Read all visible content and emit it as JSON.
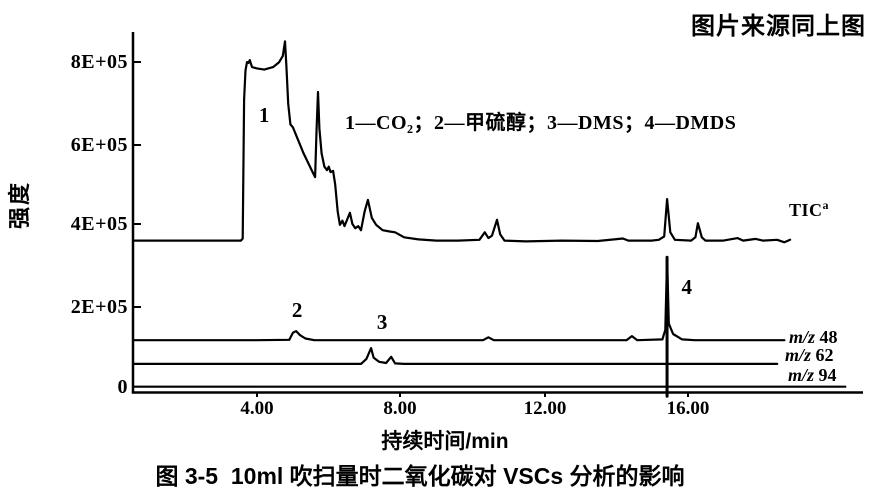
{
  "source_note": "图片来源同上图",
  "caption": "图 3-5  10ml 吹扫量时二氧化碳对 VSCs 分析的影响",
  "chart_data": {
    "type": "line",
    "title": "图 3-5 10ml 吹扫量时二氧化碳对 VSCs 分析的影响",
    "xlabel": "持续时间/min",
    "ylabel": "强度",
    "legend_text": "1—CO₂；2—甲硫醇；3—DMS；4—DMDS",
    "grid": false,
    "xlim": [
      0.55,
      20.9
    ],
    "ylim": [
      0,
      900000
    ],
    "x_tick_values": [
      4,
      8,
      12,
      16
    ],
    "x_tick_labels": [
      "4.00",
      "8.00",
      "12.00",
      "16.00"
    ],
    "y_tick_values": [
      800000,
      600000,
      400000,
      200000,
      0
    ],
    "y_tick_labels": [
      "8E+05",
      "6E+05",
      "4E+05",
      "2E+05",
      "0"
    ],
    "series": [
      {
        "name": "TIC",
        "label": "TIC",
        "label_sup": "a",
        "points": [
          [
            0.55,
            360000
          ],
          [
            2.0,
            360000
          ],
          [
            3.0,
            360000
          ],
          [
            3.55,
            360000
          ],
          [
            3.6,
            365000
          ],
          [
            3.64,
            700000
          ],
          [
            3.68,
            770000
          ],
          [
            3.72,
            790000
          ],
          [
            3.76,
            788000
          ],
          [
            3.8,
            795000
          ],
          [
            3.86,
            778000
          ],
          [
            4.0,
            775000
          ],
          [
            4.2,
            772000
          ],
          [
            4.45,
            778000
          ],
          [
            4.62,
            790000
          ],
          [
            4.72,
            805000
          ],
          [
            4.78,
            840000
          ],
          [
            4.82,
            780000
          ],
          [
            4.87,
            690000
          ],
          [
            4.93,
            640000
          ],
          [
            5.0,
            633000
          ],
          [
            5.3,
            570000
          ],
          [
            5.55,
            525000
          ],
          [
            5.62,
            513000
          ],
          [
            5.66,
            630000
          ],
          [
            5.7,
            718000
          ],
          [
            5.74,
            630000
          ],
          [
            5.8,
            570000
          ],
          [
            5.88,
            538000
          ],
          [
            5.95,
            530000
          ],
          [
            6.0,
            538000
          ],
          [
            6.05,
            525000
          ],
          [
            6.12,
            528000
          ],
          [
            6.18,
            495000
          ],
          [
            6.25,
            430000
          ],
          [
            6.31,
            398000
          ],
          [
            6.38,
            408000
          ],
          [
            6.44,
            395000
          ],
          [
            6.52,
            412000
          ],
          [
            6.59,
            427000
          ],
          [
            6.66,
            400000
          ],
          [
            6.74,
            390000
          ],
          [
            6.82,
            395000
          ],
          [
            6.9,
            385000
          ],
          [
            7.0,
            430000
          ],
          [
            7.09,
            458000
          ],
          [
            7.2,
            415000
          ],
          [
            7.32,
            398000
          ],
          [
            7.5,
            385000
          ],
          [
            7.7,
            382000
          ],
          [
            7.85,
            380000
          ],
          [
            8.1,
            368000
          ],
          [
            8.5,
            363000
          ],
          [
            9.0,
            360000
          ],
          [
            9.6,
            360000
          ],
          [
            10.2,
            362000
          ],
          [
            10.35,
            380000
          ],
          [
            10.45,
            366000
          ],
          [
            10.55,
            372000
          ],
          [
            10.69,
            410000
          ],
          [
            10.78,
            375000
          ],
          [
            10.9,
            360000
          ],
          [
            11.5,
            358000
          ],
          [
            12.5,
            360000
          ],
          [
            13.5,
            359000
          ],
          [
            14.2,
            365000
          ],
          [
            14.35,
            360000
          ],
          [
            15.0,
            360000
          ],
          [
            15.2,
            362000
          ],
          [
            15.35,
            370000
          ],
          [
            15.43,
            460000
          ],
          [
            15.52,
            380000
          ],
          [
            15.65,
            362000
          ],
          [
            16.1,
            360000
          ],
          [
            16.22,
            368000
          ],
          [
            16.29,
            402000
          ],
          [
            16.4,
            368000
          ],
          [
            16.5,
            360000
          ],
          [
            17.0,
            360000
          ],
          [
            17.4,
            366000
          ],
          [
            17.55,
            360000
          ],
          [
            17.9,
            364000
          ],
          [
            18.1,
            360000
          ],
          [
            18.5,
            362000
          ],
          [
            18.7,
            356000
          ],
          [
            18.86,
            362000
          ]
        ]
      },
      {
        "name": "m/z 48",
        "label_prefix": "m/z",
        "label_value": "48",
        "points": [
          [
            0.55,
            120000
          ],
          [
            2.0,
            120000
          ],
          [
            4.0,
            120000
          ],
          [
            4.9,
            121000
          ],
          [
            5.0,
            138000
          ],
          [
            5.09,
            142000
          ],
          [
            5.2,
            132000
          ],
          [
            5.35,
            124000
          ],
          [
            5.6,
            120000
          ],
          [
            8.0,
            120000
          ],
          [
            10.3,
            120000
          ],
          [
            10.45,
            127000
          ],
          [
            10.6,
            120000
          ],
          [
            12.0,
            120000
          ],
          [
            14.3,
            120000
          ],
          [
            14.45,
            130000
          ],
          [
            14.6,
            120000
          ],
          [
            15.3,
            122000
          ],
          [
            15.38,
            145000
          ],
          [
            15.43,
            320000
          ],
          [
            15.48,
            160000
          ],
          [
            15.6,
            135000
          ],
          [
            15.85,
            122000
          ],
          [
            16.2,
            120000
          ],
          [
            18.0,
            120000
          ],
          [
            18.7,
            120000
          ]
        ]
      },
      {
        "name": "m/z 62",
        "label_prefix": "m/z",
        "label_value": "62",
        "points": [
          [
            0.55,
            63000
          ],
          [
            2.0,
            63000
          ],
          [
            5.0,
            63000
          ],
          [
            6.9,
            63000
          ],
          [
            7.05,
            75000
          ],
          [
            7.18,
            101000
          ],
          [
            7.25,
            78000
          ],
          [
            7.4,
            68000
          ],
          [
            7.6,
            65000
          ],
          [
            7.74,
            80000
          ],
          [
            7.85,
            64000
          ],
          [
            8.1,
            63000
          ],
          [
            12.0,
            63000
          ],
          [
            16.0,
            63000
          ],
          [
            18.5,
            63000
          ]
        ]
      },
      {
        "name": "m/z 94",
        "label_prefix": "m/z",
        "label_value": "94",
        "points": [
          [
            0.55,
            8000
          ],
          [
            5.0,
            8000
          ],
          [
            10.0,
            8000
          ],
          [
            15.0,
            8000
          ],
          [
            20.4,
            8000
          ]
        ]
      }
    ],
    "saturation_spike": {
      "series": "m/z 94",
      "t": 15.43,
      "v_top": 320000,
      "v_bottom": -15000
    },
    "peak_labels": [
      {
        "text": "1",
        "compound": "CO₂",
        "t": 4.22,
        "v": 663000
      },
      {
        "text": "2",
        "compound": "甲硫醇",
        "t": 5.14,
        "v": 193000
      },
      {
        "text": "3",
        "compound": "DMS",
        "t": 7.51,
        "v": 164000
      },
      {
        "text": "4",
        "compound": "DMDS",
        "t": 16.0,
        "v": 248000
      }
    ]
  },
  "colors": {
    "ink": "#000000",
    "background": "#ffffff"
  }
}
